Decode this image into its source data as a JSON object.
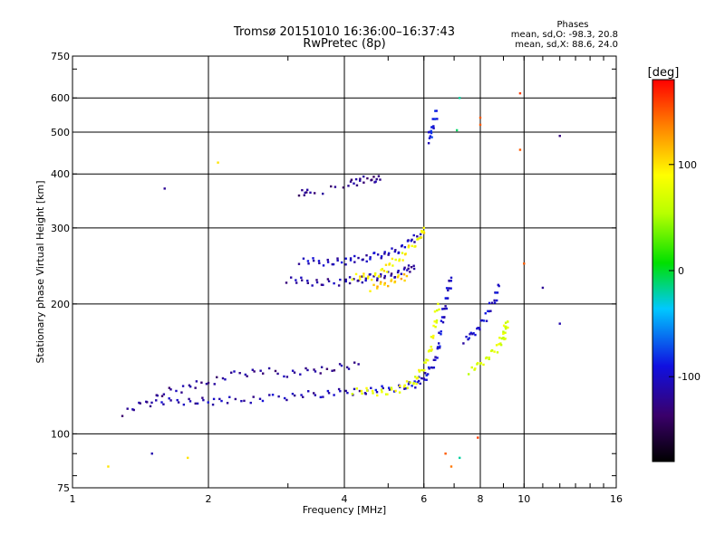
{
  "chart_data": {
    "type": "scatter",
    "title": "Tromsø 20151010 16:36:00–16:37:43",
    "subtitle": "RwPretec (8p)",
    "xlabel": "Frequency [MHz]",
    "ylabel": "Stationary phase Virtual Height [km]",
    "x_scale": "log",
    "y_scale": "log",
    "xlim": [
      1,
      16
    ],
    "ylim": [
      75,
      750
    ],
    "xticks": [
      1,
      2,
      4,
      6,
      8,
      10,
      16
    ],
    "xtick_labels": [
      "1",
      "2",
      "4",
      "6",
      "8",
      "10",
      "16"
    ],
    "yticks": [
      75,
      100,
      200,
      300,
      400,
      500,
      600,
      750
    ],
    "ytick_labels": [
      "75",
      "100",
      "200",
      "300",
      "400",
      "500",
      "600",
      "750"
    ],
    "x_gridlines": [
      2,
      4,
      6,
      8,
      10
    ],
    "y_gridlines": [
      100,
      200,
      300,
      400,
      500,
      600
    ],
    "grid": true,
    "colorbar": {
      "label": "[deg]",
      "range": [
        -180,
        180
      ],
      "ticks": [
        100,
        0,
        -100
      ],
      "tick_labels": [
        "100",
        "0",
        "-100"
      ]
    },
    "stats": {
      "heading": "Phases",
      "o_line": "mean, sd,O: -98.3, 20.8",
      "x_line": "mean, sd,X: 88.6, 24.0"
    },
    "traces": [
      {
        "name": "",
        "phase_deg": -110,
        "points": [
          [
            1.5,
            118
          ],
          [
            1.7,
            119
          ],
          [
            1.9,
            119
          ],
          [
            2.1,
            119
          ],
          [
            2.4,
            120
          ],
          [
            2.8,
            121
          ],
          [
            3.2,
            123
          ],
          [
            3.6,
            124
          ],
          [
            4.0,
            125
          ],
          [
            4.5,
            126
          ]
        ]
      },
      {
        "name": "",
        "phase_deg": -100,
        "points": [
          [
            4.5,
            126
          ],
          [
            5.0,
            127
          ],
          [
            5.5,
            129
          ],
          [
            5.8,
            131
          ],
          [
            6.0,
            135
          ],
          [
            6.2,
            140
          ],
          [
            6.4,
            150
          ],
          [
            6.5,
            165
          ],
          [
            6.6,
            185
          ],
          [
            6.7,
            200
          ],
          [
            6.8,
            215
          ],
          [
            6.9,
            230
          ]
        ]
      },
      {
        "name": "",
        "phase_deg": -120,
        "points": [
          [
            1.3,
            112
          ],
          [
            1.45,
            118
          ],
          [
            1.6,
            125
          ],
          [
            1.8,
            128
          ],
          [
            2.0,
            132
          ],
          [
            2.3,
            137
          ],
          [
            2.6,
            140
          ],
          [
            3.0,
            138
          ],
          [
            3.4,
            140
          ],
          [
            3.8,
            142
          ],
          [
            4.3,
            145
          ]
        ]
      },
      {
        "name": "",
        "phase_deg": -115,
        "points": [
          [
            3.0,
            228
          ],
          [
            3.3,
            225
          ],
          [
            3.6,
            224
          ],
          [
            4.0,
            225
          ],
          [
            4.3,
            228
          ],
          [
            4.6,
            230
          ],
          [
            4.9,
            232
          ],
          [
            5.2,
            235
          ],
          [
            5.5,
            240
          ],
          [
            5.7,
            245
          ]
        ]
      },
      {
        "name": "",
        "phase_deg": -105,
        "points": [
          [
            3.2,
            252
          ],
          [
            3.5,
            250
          ],
          [
            3.8,
            250
          ],
          [
            4.1,
            252
          ],
          [
            4.4,
            255
          ],
          [
            4.7,
            258
          ],
          [
            5.0,
            262
          ],
          [
            5.3,
            268
          ],
          [
            5.6,
            280
          ],
          [
            5.9,
            290
          ]
        ]
      },
      {
        "name": "",
        "phase_deg": -125,
        "points": [
          [
            3.2,
            363
          ],
          [
            3.35,
            360
          ],
          [
            4.1,
            380
          ],
          [
            4.3,
            385
          ],
          [
            4.6,
            390
          ],
          [
            4.8,
            388
          ]
        ]
      },
      {
        "name": "",
        "phase_deg": 80,
        "points": [
          [
            4.2,
            126
          ],
          [
            4.6,
            125
          ],
          [
            5.0,
            125
          ],
          [
            5.4,
            128
          ],
          [
            5.7,
            132
          ],
          [
            5.9,
            138
          ],
          [
            6.1,
            148
          ],
          [
            6.25,
            162
          ],
          [
            6.35,
            180
          ],
          [
            6.45,
            200
          ]
        ]
      },
      {
        "name": "",
        "phase_deg": 90,
        "points": [
          [
            4.2,
            232
          ],
          [
            4.5,
            230
          ],
          [
            4.8,
            235
          ],
          [
            5.0,
            245
          ],
          [
            5.3,
            255
          ],
          [
            5.6,
            268
          ],
          [
            5.9,
            285
          ],
          [
            6.0,
            300
          ]
        ]
      },
      {
        "name": "",
        "phase_deg": 110,
        "points": [
          [
            4.6,
            218
          ],
          [
            4.9,
            222
          ],
          [
            5.2,
            228
          ],
          [
            5.5,
            232
          ]
        ]
      },
      {
        "name": "",
        "phase_deg": -100,
        "points": [
          [
            7.4,
            165
          ],
          [
            7.7,
            170
          ],
          [
            8.0,
            178
          ],
          [
            8.3,
            190
          ],
          [
            8.6,
            205
          ],
          [
            8.8,
            220
          ]
        ]
      },
      {
        "name": "",
        "phase_deg": 70,
        "points": [
          [
            7.6,
            140
          ],
          [
            8.0,
            145
          ],
          [
            8.4,
            152
          ],
          [
            8.8,
            160
          ],
          [
            9.0,
            168
          ],
          [
            9.1,
            175
          ],
          [
            9.2,
            182
          ]
        ]
      },
      {
        "name": "",
        "phase_deg": -90,
        "points": [
          [
            6.2,
            480
          ],
          [
            6.2,
            500
          ],
          [
            6.3,
            520
          ],
          [
            6.4,
            560
          ]
        ]
      }
    ],
    "isolated_points": [
      {
        "x": 1.6,
        "y": 370,
        "phase_deg": -120
      },
      {
        "x": 2.1,
        "y": 425,
        "phase_deg": 100
      },
      {
        "x": 1.5,
        "y": 90,
        "phase_deg": -110
      },
      {
        "x": 1.8,
        "y": 88,
        "phase_deg": 100
      },
      {
        "x": 1.2,
        "y": 84,
        "phase_deg": 100
      },
      {
        "x": 12.0,
        "y": 490,
        "phase_deg": -130
      },
      {
        "x": 11.0,
        "y": 218,
        "phase_deg": -120
      },
      {
        "x": 9.8,
        "y": 615,
        "phase_deg": 160
      },
      {
        "x": 8.0,
        "y": 540,
        "phase_deg": 150
      },
      {
        "x": 8.0,
        "y": 520,
        "phase_deg": 150
      },
      {
        "x": 7.2,
        "y": 600,
        "phase_deg": -20
      },
      {
        "x": 7.1,
        "y": 505,
        "phase_deg": -10
      },
      {
        "x": 7.2,
        "y": 88,
        "phase_deg": -20
      },
      {
        "x": 6.9,
        "y": 84,
        "phase_deg": 140
      },
      {
        "x": 6.7,
        "y": 90,
        "phase_deg": 150
      },
      {
        "x": 7.9,
        "y": 98,
        "phase_deg": 160
      },
      {
        "x": 9.8,
        "y": 455,
        "phase_deg": 150
      },
      {
        "x": 12.0,
        "y": 180,
        "phase_deg": -110
      },
      {
        "x": 10.0,
        "y": 248,
        "phase_deg": 150
      }
    ]
  }
}
